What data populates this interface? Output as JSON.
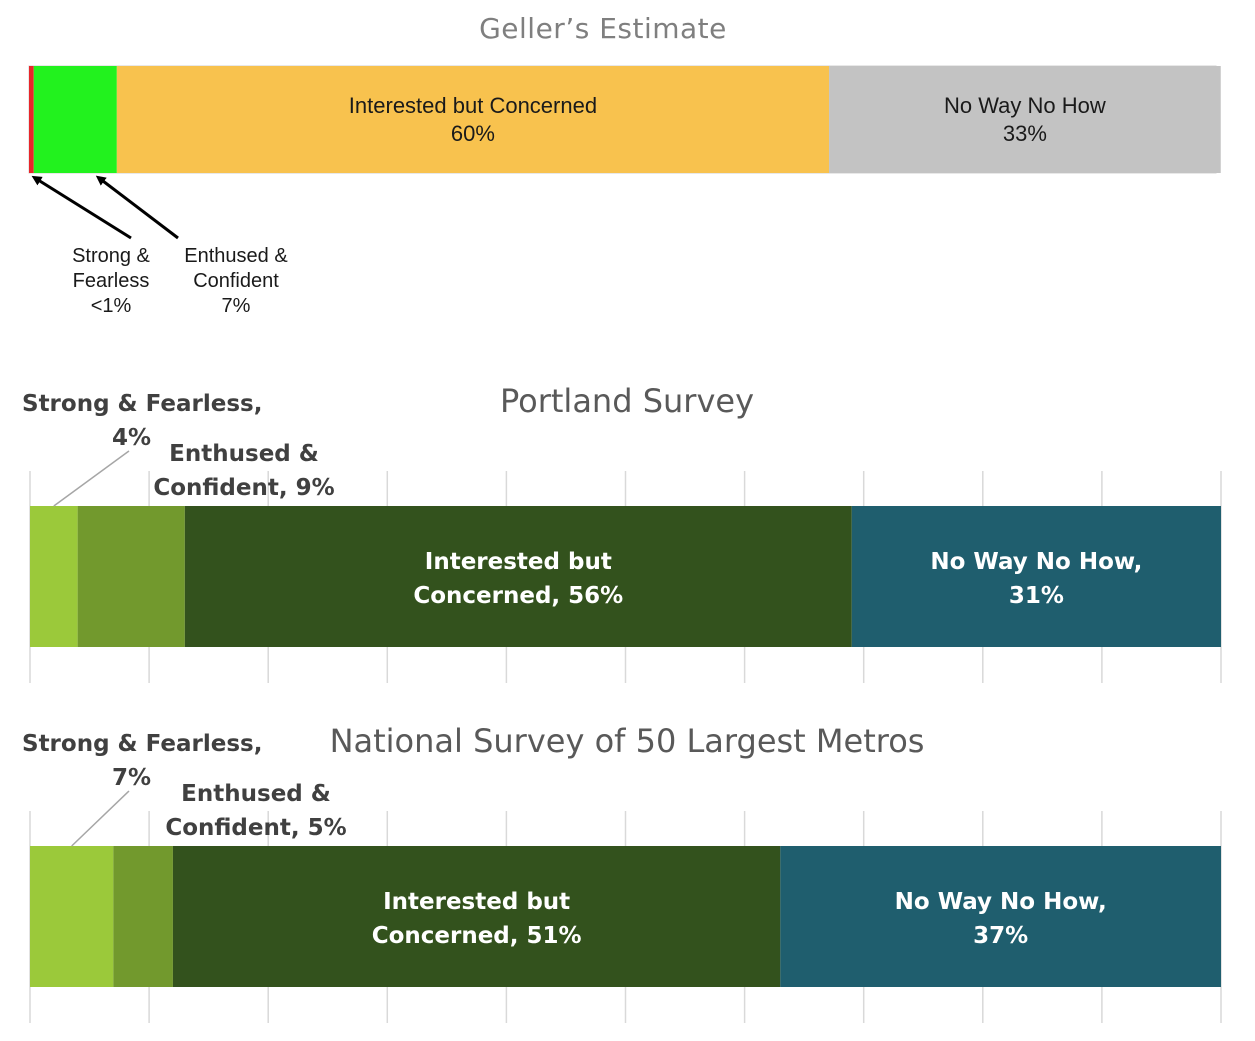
{
  "colors": {
    "background": "#ffffff",
    "geller_title": "#7f7f7f",
    "survey_title": "#595959",
    "annotation_text": "#404040",
    "gridline": "#d9d9d9",
    "geller_strong": "#e8262a",
    "geller_enthused": "#22f21e",
    "geller_interested": "#f8c24e",
    "geller_noway": "#c3c3c3",
    "survey_strong": "#9bc93a",
    "survey_enthused": "#72992d",
    "survey_interested": "#33521d",
    "survey_noway": "#1f5e6e"
  },
  "chart_data": [
    {
      "type": "bar",
      "orientation": "horizontal-stacked",
      "title": "Geller’s Estimate",
      "categories": [
        "Strong & Fearless",
        "Enthused & Confident",
        "Interested but Concerned",
        "No Way No How"
      ],
      "values": [
        0.4,
        7,
        60,
        33
      ],
      "value_labels": [
        "<1%",
        "7%",
        "60%",
        "33%"
      ],
      "segment_labels": [
        [
          "Strong &",
          "Fearless",
          "<1%"
        ],
        [
          "Enthused &",
          "Confident",
          "7%"
        ],
        [
          "Interested but Concerned",
          "60%"
        ],
        [
          "No Way No How",
          "33%"
        ]
      ],
      "grid": false,
      "xlim": [
        0,
        100
      ]
    },
    {
      "type": "bar",
      "orientation": "horizontal-stacked",
      "title": "Portland Survey",
      "categories": [
        "Strong & Fearless",
        "Enthused & Confident",
        "Interested but Concerned",
        "No Way No How"
      ],
      "values": [
        4,
        9,
        56,
        31
      ],
      "segment_labels": [
        [
          "Strong & Fearless,",
          "4%"
        ],
        [
          "Enthused &",
          "Confident, 9%"
        ],
        [
          "Interested but",
          "Concerned, 56%"
        ],
        [
          "No Way No How,",
          "31%"
        ]
      ],
      "grid": true,
      "xlim": [
        0,
        100
      ]
    },
    {
      "type": "bar",
      "orientation": "horizontal-stacked",
      "title": "National Survey of 50 Largest Metros",
      "categories": [
        "Strong & Fearless",
        "Enthused & Confident",
        "Interested but Concerned",
        "No Way No How"
      ],
      "values": [
        7,
        5,
        51,
        37
      ],
      "segment_labels": [
        [
          "Strong & Fearless,",
          "7%"
        ],
        [
          "Enthused &",
          "Confident, 5%"
        ],
        [
          "Interested but",
          "Concerned, 51%"
        ],
        [
          "No Way No How,",
          "37%"
        ]
      ],
      "grid": true,
      "xlim": [
        0,
        100
      ]
    }
  ]
}
